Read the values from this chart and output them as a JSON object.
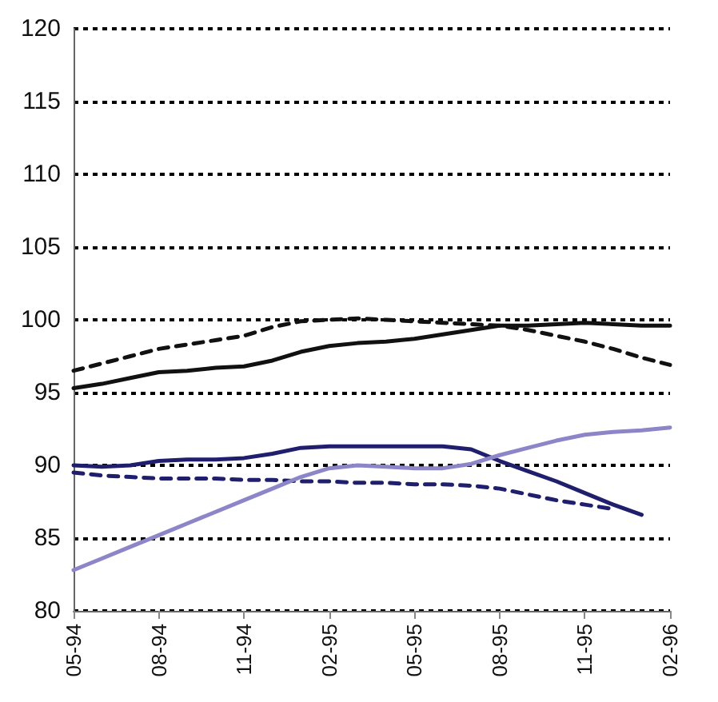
{
  "chart_data": {
    "type": "line",
    "categories": [
      "05-94",
      null,
      null,
      "08-94",
      null,
      null,
      "11-94",
      null,
      null,
      "02-95",
      null,
      null,
      "05-95",
      null,
      null,
      "08-95",
      null,
      null,
      "11-95",
      null,
      null,
      "02-96"
    ],
    "series": [
      {
        "color": "#111111",
        "line_style": "solid",
        "values": [
          95.3,
          95.6,
          96.0,
          96.4,
          96.5,
          96.7,
          96.8,
          97.2,
          97.8,
          98.2,
          98.4,
          98.5,
          98.7,
          99.0,
          99.3,
          99.6,
          99.6,
          99.7,
          99.8,
          99.7,
          99.6,
          99.6
        ]
      },
      {
        "color": "#111111",
        "line_style": "dashed",
        "values": [
          96.5,
          97.0,
          97.5,
          98.0,
          98.3,
          98.6,
          98.9,
          99.5,
          99.9,
          100,
          100.1,
          100,
          99.9,
          99.8,
          99.7,
          99.6,
          99.3,
          98.9,
          98.5,
          98.0,
          97.4,
          96.9
        ]
      },
      {
        "color": "#1f1f6e",
        "line_style": "solid",
        "values": [
          90,
          89.9,
          90,
          90.3,
          90.4,
          90.4,
          90.5,
          90.8,
          91.2,
          91.3,
          91.3,
          91.3,
          91.3,
          91.3,
          91.1,
          90.3,
          89.6,
          88.9,
          88.1,
          87.3,
          86.6,
          null
        ]
      },
      {
        "color": "#1f1f6e",
        "line_style": "dashed",
        "values": [
          89.5,
          89.3,
          89.2,
          89.1,
          89.1,
          89.1,
          89.0,
          89.0,
          88.9,
          88.9,
          88.8,
          88.8,
          88.7,
          88.7,
          88.6,
          88.4,
          88.0,
          87.6,
          87.3,
          87.0,
          null,
          null
        ]
      },
      {
        "color": "#8c86c9",
        "line_style": "solid",
        "values": [
          82.8,
          83.6,
          84.4,
          85.2,
          86.0,
          86.8,
          87.6,
          88.4,
          89.2,
          89.8,
          90.0,
          89.9,
          89.8,
          89.8,
          90.1,
          90.7,
          91.2,
          91.7,
          92.1,
          92.3,
          92.4,
          92.6
        ]
      }
    ],
    "ylim": [
      80,
      120
    ],
    "yticks": [
      80,
      85,
      90,
      95,
      100,
      105,
      110,
      115,
      120
    ],
    "grid": "y",
    "marker": "none"
  }
}
